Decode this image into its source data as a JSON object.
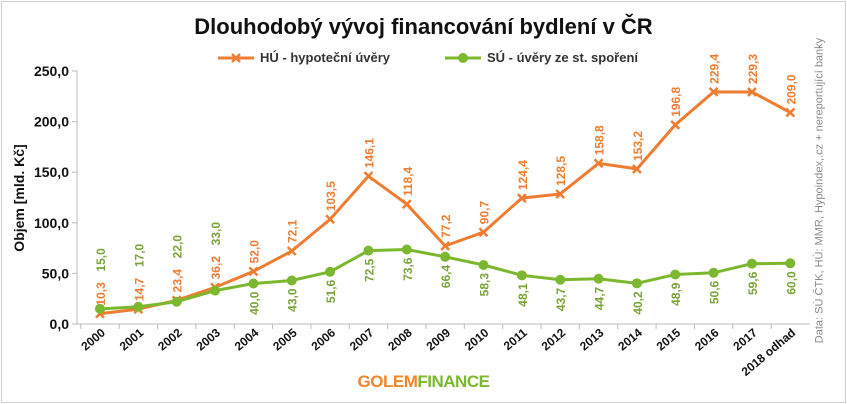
{
  "chart_data": {
    "type": "line",
    "title": "Dlouhodobý vývoj financování bydlení v ČR",
    "ylabel": "Objem [mld. Kč]",
    "xlabel": "",
    "ylim": [
      0,
      250
    ],
    "yticks": [
      "0,0",
      "50,0",
      "100,0",
      "150,0",
      "200,0",
      "250,0"
    ],
    "grid": false,
    "legend": "top",
    "categories": [
      "2000",
      "2001",
      "2002",
      "2003",
      "2004",
      "2005",
      "2006",
      "2007",
      "2008",
      "2009",
      "2010",
      "2011",
      "2012",
      "2013",
      "2014",
      "2015",
      "2016",
      "2017",
      "2018 odhad"
    ],
    "series": [
      {
        "name": "HÚ - hypoteční úvěry",
        "color": "#ee7d31",
        "marker": "x",
        "values": [
          10.3,
          14.7,
          23.4,
          36.2,
          52.0,
          72.1,
          103.5,
          146.1,
          118.4,
          77.2,
          90.7,
          124.4,
          128.5,
          158.8,
          153.2,
          196.8,
          229.4,
          229.3,
          209.0
        ],
        "labels": [
          "10,3",
          "14,7",
          "23,4",
          "36,2",
          "52,0",
          "72,1",
          "103,5",
          "146,1",
          "118,4",
          "77,2",
          "90,7",
          "124,4",
          "128,5",
          "158,8",
          "153,2",
          "196,8",
          "229,4",
          "229,3",
          "209,0"
        ]
      },
      {
        "name": "SÚ - úvěry ze st. spoření",
        "color": "#7cb82f",
        "marker": "circle",
        "values": [
          15.0,
          17.0,
          22.0,
          33.0,
          40.0,
          43.0,
          51.6,
          72.5,
          73.6,
          66.4,
          58.3,
          48.1,
          43.7,
          44.7,
          40.2,
          48.9,
          50.6,
          59.6,
          60.0
        ],
        "labels": [
          "15,0",
          "17,0",
          "22,0",
          "33,0",
          "40,0",
          "43,0",
          "51,6",
          "72,5",
          "73,6",
          "66,4",
          "58,3",
          "48,1",
          "43,7",
          "44,7",
          "40,2",
          "48,9",
          "50,6",
          "59,6",
          "60,0"
        ]
      }
    ],
    "source_note": "Data: SÚ ČTK, HÚ: MMR, Hypoindex,.cz + nereportující banky"
  },
  "logo": {
    "part1": "GOLEM",
    "part2": "FINANCE"
  }
}
